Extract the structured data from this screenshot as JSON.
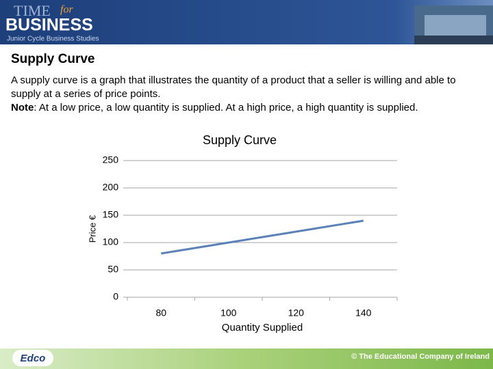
{
  "header": {
    "logo_time": "TIME",
    "logo_for": "for",
    "logo_business": "BUSINESS",
    "logo_subtitle": "Junior Cycle Business Studies"
  },
  "slide": {
    "title": "Supply Curve",
    "paragraph": "A supply curve is a graph that illustrates the quantity of a product that a seller is willing and able to supply at a series of price points.",
    "note_label": "Note",
    "note_text": ": At a low price, a low quantity is supplied. At a high price, a high quantity is supplied."
  },
  "chart_data": {
    "type": "line",
    "title": "Supply Curve",
    "x_label": "Quantity Supplied",
    "y_label": "Price €",
    "categories": [
      "80",
      "100",
      "120",
      "140"
    ],
    "values": [
      80,
      100,
      120,
      140
    ],
    "color": "#5b82b8",
    "ylim": [
      0,
      250
    ],
    "yticks": [
      0,
      50,
      100,
      150,
      200,
      250
    ],
    "grid": true
  },
  "footer": {
    "logo": "Edco",
    "copyright": "© The Educational Company of Ireland"
  }
}
